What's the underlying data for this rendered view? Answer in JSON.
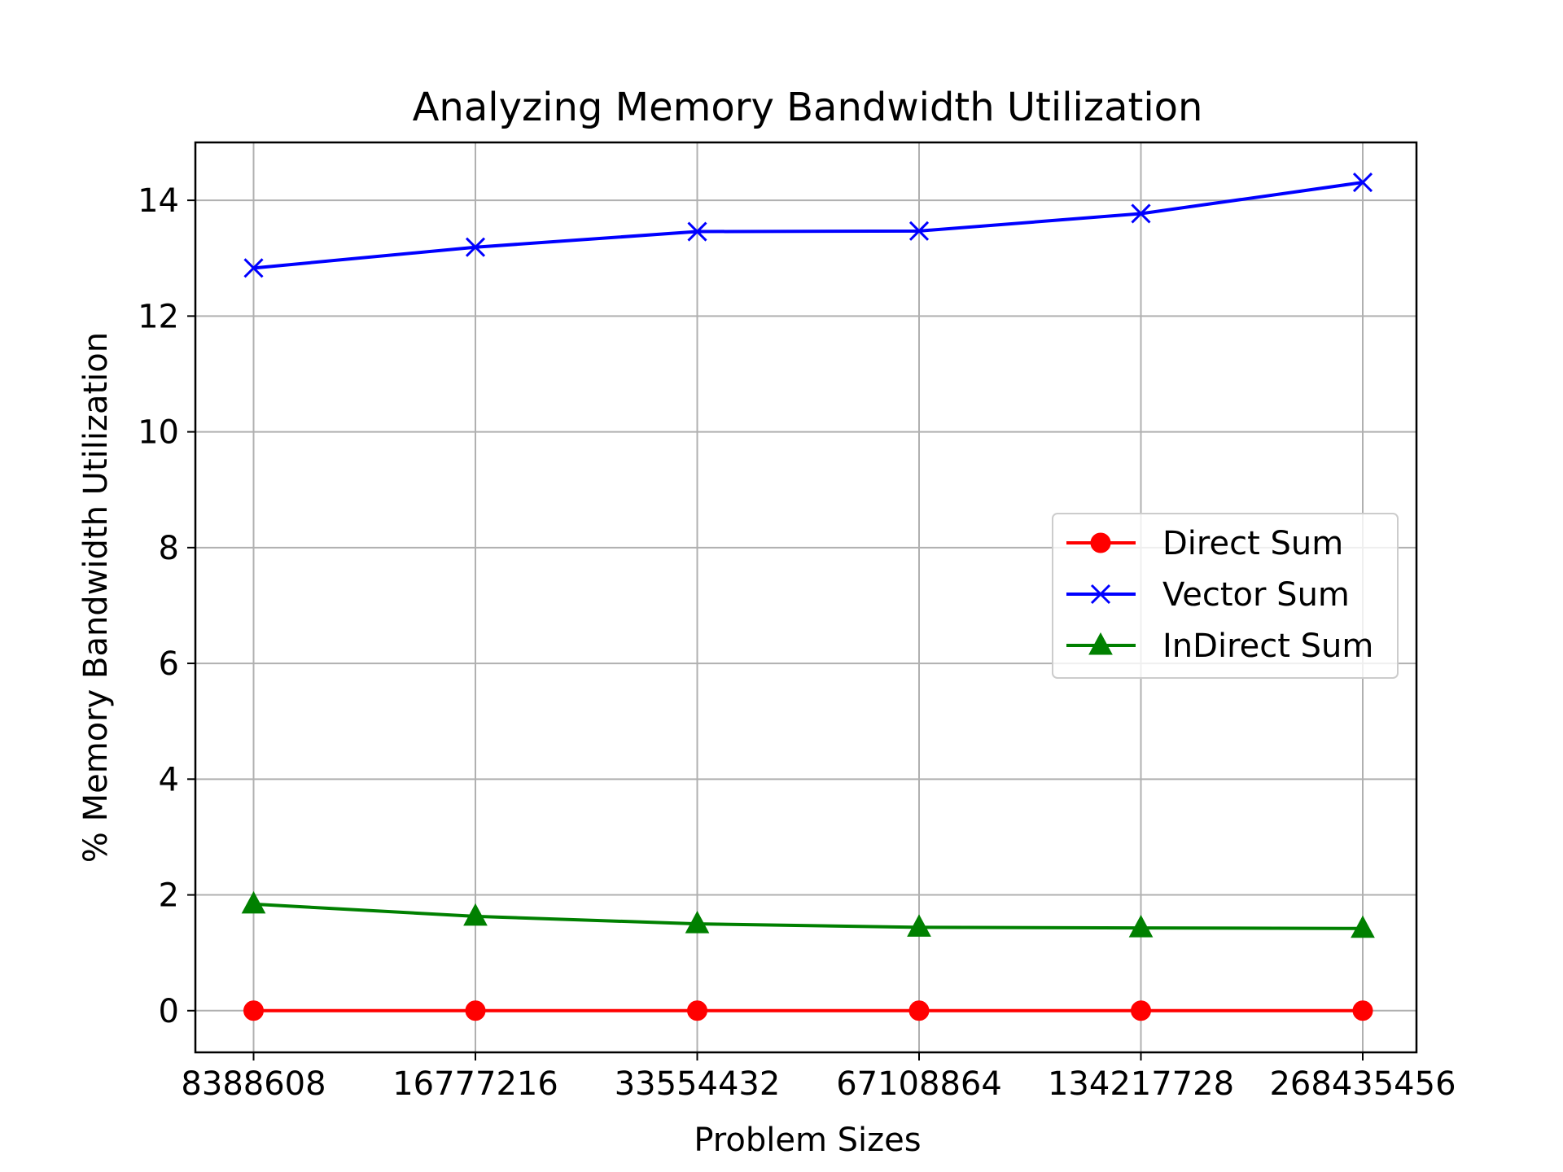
{
  "chart_data": {
    "type": "line",
    "title": "Analyzing Memory Bandwidth Utilization",
    "xlabel": "Problem Sizes",
    "ylabel": "% Memory Bandwidth Utilization",
    "categories": [
      "8388608",
      "16777216",
      "33554432",
      "67108864",
      "134217728",
      "268435456"
    ],
    "yticks": [
      "0",
      "2",
      "4",
      "6",
      "8",
      "10",
      "12",
      "14"
    ],
    "ylim": [
      -0.72,
      15
    ],
    "grid": true,
    "legend_position": "center-right",
    "series": [
      {
        "name": "Direct Sum",
        "color": "#ff0000",
        "marker": "circle",
        "values": [
          0.0,
          0.0,
          0.0,
          0.0,
          0.0,
          0.0
        ]
      },
      {
        "name": "Vector Sum",
        "color": "#0000ff",
        "marker": "x",
        "values": [
          12.83,
          13.19,
          13.46,
          13.47,
          13.77,
          14.31
        ]
      },
      {
        "name": "InDirect Sum",
        "color": "#008000",
        "marker": "triangle",
        "values": [
          1.84,
          1.63,
          1.5,
          1.44,
          1.43,
          1.42
        ]
      }
    ]
  }
}
